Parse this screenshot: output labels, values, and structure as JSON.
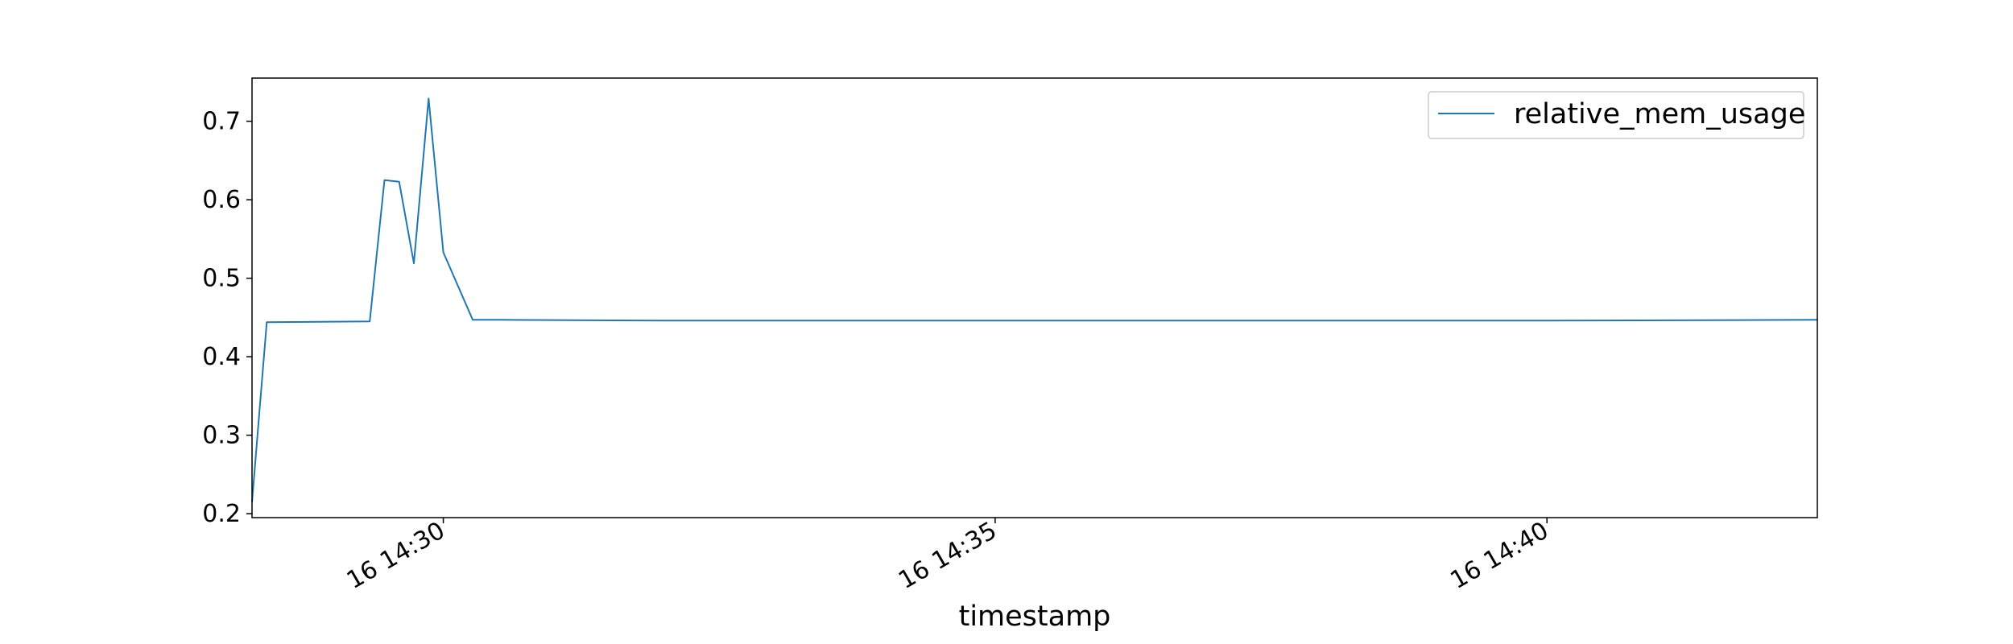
{
  "chart_data": {
    "type": "line",
    "title": "",
    "xlabel": "timestamp",
    "ylabel": "",
    "x_format": "datetime",
    "xlim": [
      "2024-01-16 14:28:16",
      "2024-01-16 14:42:27"
    ],
    "ylim": [
      0.195,
      0.755
    ],
    "y_ticks": [
      0.2,
      0.3,
      0.4,
      0.5,
      0.6,
      0.7
    ],
    "y_tick_labels": [
      "0.2",
      "0.3",
      "0.4",
      "0.5",
      "0.6",
      "0.7"
    ],
    "x_ticks": [
      "2024-01-16 14:30:00",
      "2024-01-16 14:35:00",
      "2024-01-16 14:40:00"
    ],
    "x_tick_labels": [
      "16 14:30",
      "16 14:35",
      "16 14:40"
    ],
    "grid": false,
    "legend": "top-right",
    "color": "#1f77b4",
    "series": [
      {
        "name": "relative_mem_usage",
        "x": [
          "2024-01-16 14:28:16",
          "2024-01-16 14:28:24",
          "2024-01-16 14:29:20",
          "2024-01-16 14:29:28",
          "2024-01-16 14:29:36",
          "2024-01-16 14:29:44",
          "2024-01-16 14:29:52",
          "2024-01-16 14:30:00",
          "2024-01-16 14:30:16",
          "2024-01-16 14:30:32",
          "2024-01-16 14:32:00",
          "2024-01-16 14:34:00",
          "2024-01-16 14:36:00",
          "2024-01-16 14:38:00",
          "2024-01-16 14:40:00",
          "2024-01-16 14:42:27"
        ],
        "y": [
          0.215,
          0.444,
          0.445,
          0.625,
          0.623,
          0.519,
          0.729,
          0.533,
          0.447,
          0.447,
          0.446,
          0.446,
          0.446,
          0.446,
          0.446,
          0.447
        ]
      }
    ]
  }
}
